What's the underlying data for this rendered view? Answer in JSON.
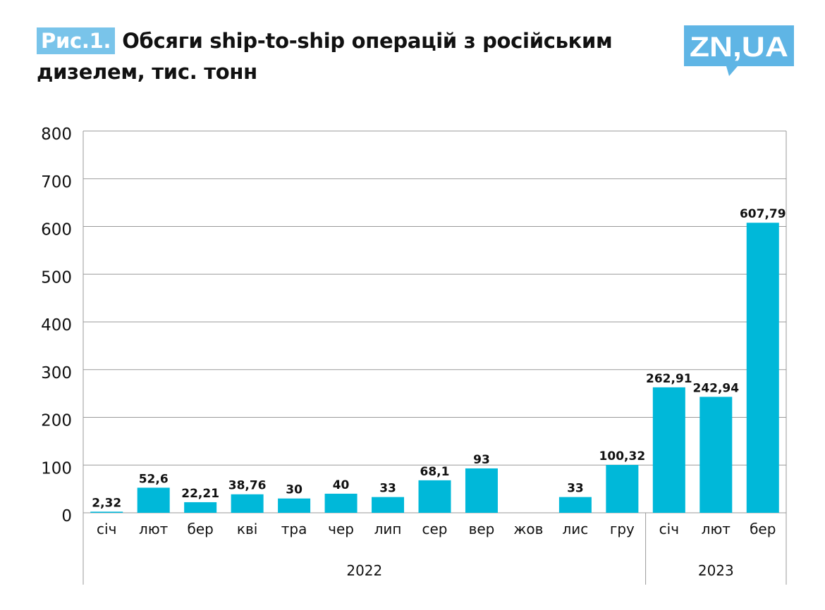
{
  "header": {
    "fig_label": "Рис.1.",
    "title_line1": "Обсяги ship-to-ship операцій з російським",
    "title_line2": "дизелем, тис. тонн"
  },
  "logo": {
    "text": "ZN,UA",
    "color": "#5fb5e5"
  },
  "chart_data": {
    "type": "bar",
    "title": "Обсяги ship-to-ship операцій з російським дизелем, тис. тонн",
    "xlabel": "",
    "ylabel": "",
    "ylim": [
      0,
      800
    ],
    "yticks": [
      0,
      100,
      200,
      300,
      400,
      500,
      600,
      700,
      800
    ],
    "grid": true,
    "bar_color": "#00b8d9",
    "categories": [
      "січ",
      "лют",
      "бер",
      "кві",
      "тра",
      "чер",
      "лип",
      "сер",
      "вер",
      "жов",
      "лис",
      "гру",
      "січ",
      "лют",
      "бер"
    ],
    "values": [
      2.32,
      52.6,
      22.21,
      38.76,
      30,
      40,
      33,
      68.1,
      93,
      null,
      33,
      100.32,
      262.91,
      242.94,
      607.79
    ],
    "data_labels": [
      "2,32",
      "52,6",
      "22,21",
      "38,76",
      "30",
      "40",
      "33",
      "68,1",
      "93",
      "",
      "33",
      "100,32",
      "262,91",
      "242,94",
      "607,79"
    ],
    "groups": [
      {
        "label": "2022",
        "count": 12
      },
      {
        "label": "2023",
        "count": 3
      }
    ]
  }
}
